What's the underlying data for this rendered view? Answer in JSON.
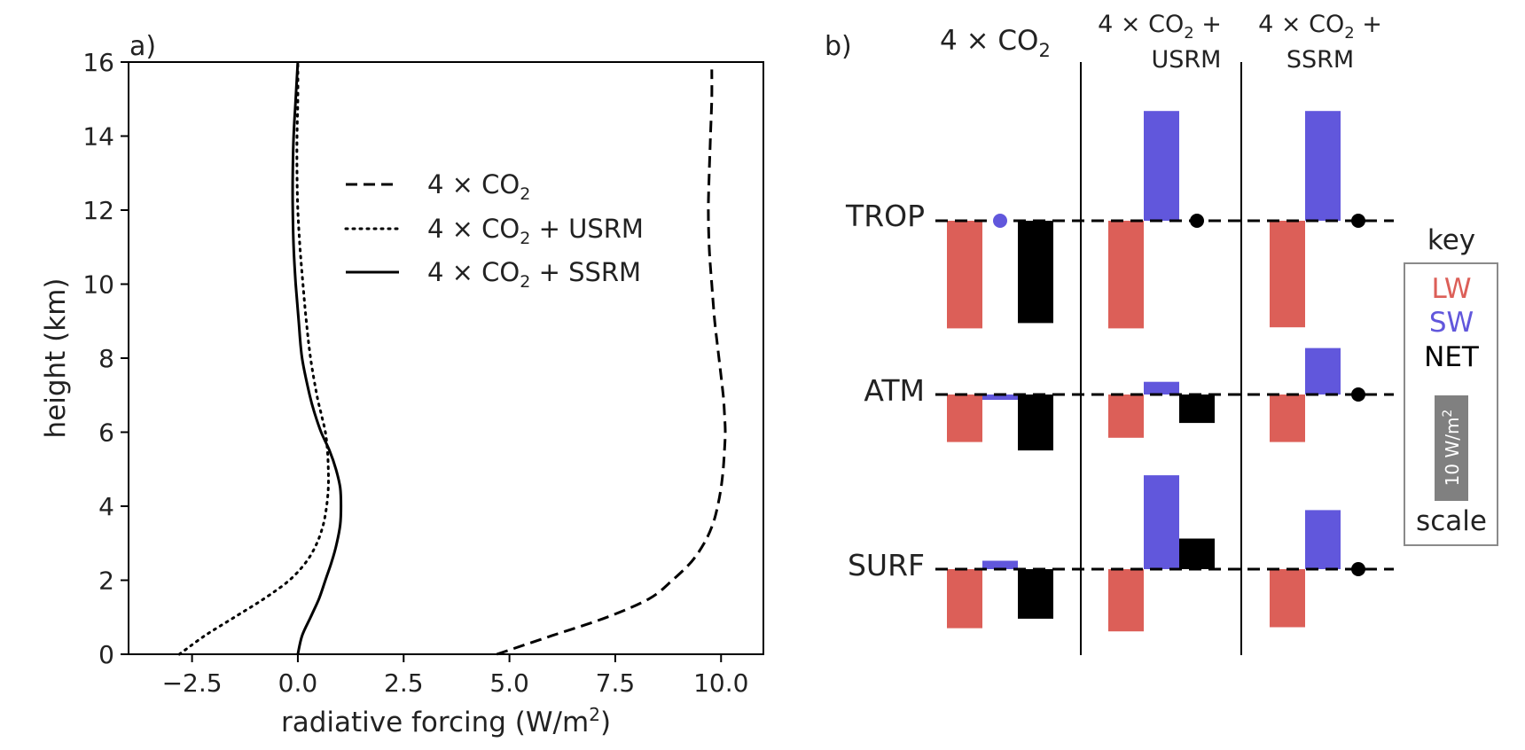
{
  "chart_data": [
    {
      "type": "line",
      "panel_label": "a)",
      "xlabel": "radiative forcing (W/m",
      "xlabel_sup": "2",
      "xlabel_end": ")",
      "ylabel": "height (km)",
      "xlim": [
        -4.0,
        11.0
      ],
      "ylim": [
        0,
        16
      ],
      "xticks": [
        -2.5,
        0.0,
        2.5,
        5.0,
        7.5,
        10.0
      ],
      "xtick_labels": [
        "−2.5",
        "0.0",
        "2.5",
        "5.0",
        "7.5",
        "10.0"
      ],
      "yticks": [
        0,
        2,
        4,
        6,
        8,
        10,
        12,
        14,
        16
      ],
      "ytick_labels": [
        "0",
        "2",
        "4",
        "6",
        "8",
        "10",
        "12",
        "14",
        "16"
      ],
      "legend": "upper-right",
      "grid": false,
      "series": [
        {
          "name": "4 × CO",
          "name_sub": "2",
          "style": "dashed",
          "y": [
            0,
            0.5,
            1,
            1.5,
            2,
            2.5,
            3,
            3.5,
            4,
            4.5,
            5,
            5.5,
            6,
            6.5,
            7,
            8,
            9,
            10,
            11,
            12,
            13,
            14,
            15,
            15.8
          ],
          "x": [
            4.7,
            6.0,
            7.3,
            8.3,
            8.85,
            9.3,
            9.6,
            9.8,
            9.92,
            10.0,
            10.05,
            10.08,
            10.1,
            10.08,
            10.05,
            9.95,
            9.85,
            9.78,
            9.72,
            9.7,
            9.72,
            9.75,
            9.78,
            9.78
          ]
        },
        {
          "name": "4 × CO",
          "name_sub": "2",
          "name_suffix": " + USRM",
          "style": "dotted",
          "y": [
            0,
            0.5,
            1,
            1.5,
            2,
            2.5,
            3,
            3.5,
            4,
            4.5,
            5,
            5.5,
            6,
            6.5,
            7,
            8,
            9,
            10,
            11,
            12,
            13,
            14,
            15,
            16
          ],
          "x": [
            -2.8,
            -2.2,
            -1.5,
            -0.8,
            -0.2,
            0.2,
            0.45,
            0.6,
            0.68,
            0.72,
            0.72,
            0.7,
            0.65,
            0.55,
            0.45,
            0.3,
            0.2,
            0.12,
            0.05,
            0.0,
            -0.02,
            -0.02,
            0.0,
            0.0
          ]
        },
        {
          "name": "4 × CO",
          "name_sub": "2",
          "name_suffix": " + SSRM",
          "style": "solid",
          "y": [
            0,
            0.5,
            1,
            1.5,
            2,
            2.5,
            3,
            3.5,
            4,
            4.5,
            5,
            5.5,
            6,
            6.5,
            7,
            8,
            9,
            10,
            11,
            12,
            13,
            14,
            15,
            16
          ],
          "x": [
            0.0,
            0.1,
            0.3,
            0.5,
            0.65,
            0.8,
            0.92,
            1.0,
            1.02,
            1.0,
            0.9,
            0.75,
            0.55,
            0.4,
            0.28,
            0.1,
            0.02,
            -0.05,
            -0.1,
            -0.12,
            -0.12,
            -0.1,
            -0.05,
            0.0
          ]
        }
      ]
    },
    {
      "type": "bar",
      "panel_label": "b)",
      "columns": [
        {
          "title_line1": "4 × CO",
          "sub": "2",
          "title_suffix": "",
          "title_line2": ""
        },
        {
          "title_line1": "4 × CO",
          "sub": "2",
          "title_suffix": " +",
          "title_line2": "USRM"
        },
        {
          "title_line1": "4 × CO",
          "sub": "2",
          "title_suffix": " +",
          "title_line2": "SSRM"
        }
      ],
      "rows": [
        "TROP",
        "ATM",
        "SURF"
      ],
      "components": [
        "LW",
        "SW",
        "NET"
      ],
      "scale_label": "10 W/m",
      "scale_sup": "2",
      "scale_value": 10,
      "key_title": "key",
      "key_scale": "scale",
      "colors": {
        "LW": "#dc5f58",
        "SW": "#6157dc",
        "NET": "#000000",
        "scale": "#808080"
      },
      "values": [
        [
          [
            -10.2,
            0.0,
            -9.7
          ],
          [
            -10.2,
            10.4,
            0.0
          ],
          [
            -10.1,
            10.4,
            0.0
          ]
        ],
        [
          [
            -4.5,
            -0.5,
            -5.3
          ],
          [
            -4.1,
            1.2,
            -2.7
          ],
          [
            -4.5,
            4.4,
            0.0
          ]
        ],
        [
          [
            -5.6,
            0.8,
            -4.7
          ],
          [
            -5.9,
            8.9,
            2.9
          ],
          [
            -5.5,
            5.6,
            0.0
          ]
        ]
      ]
    }
  ]
}
